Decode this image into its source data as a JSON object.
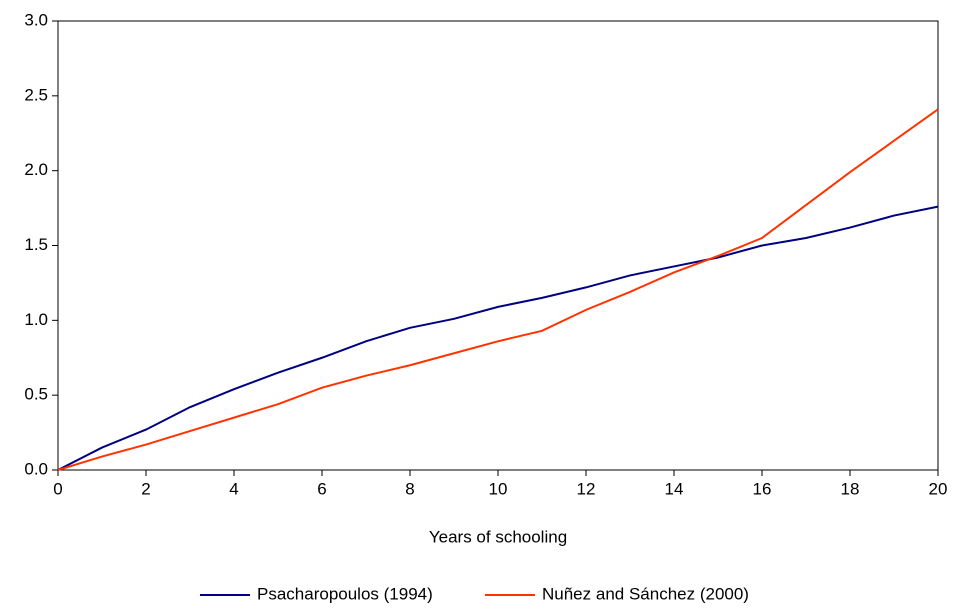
{
  "chart_data": {
    "type": "line",
    "x_label": "Years of schooling",
    "x": [
      0,
      1,
      2,
      3,
      4,
      5,
      6,
      7,
      8,
      9,
      10,
      11,
      12,
      13,
      14,
      15,
      16,
      17,
      18,
      19,
      20
    ],
    "series": [
      {
        "name": "Psacharopoulos (1994)",
        "color": "#000080",
        "values": [
          0,
          0.15,
          0.27,
          0.42,
          0.54,
          0.65,
          0.75,
          0.86,
          0.95,
          1.01,
          1.09,
          1.15,
          1.22,
          1.3,
          1.36,
          1.42,
          1.5,
          1.55,
          1.62,
          1.7,
          1.76
        ]
      },
      {
        "name": "Nuñez and Sánchez (2000)",
        "color": "#ff3300",
        "values": [
          0,
          0.09,
          0.17,
          0.26,
          0.35,
          0.44,
          0.55,
          0.63,
          0.7,
          0.78,
          0.86,
          0.93,
          1.07,
          1.19,
          1.32,
          1.43,
          1.55,
          1.77,
          1.99,
          2.2,
          2.41
        ]
      }
    ],
    "xlim": [
      0,
      20
    ],
    "xticks": [
      0,
      2,
      4,
      6,
      8,
      10,
      12,
      14,
      16,
      18,
      20
    ],
    "ylim": [
      0,
      3
    ],
    "yticks": [
      {
        "value": 0,
        "label": "0.0"
      },
      0.5,
      {
        "value": 1,
        "label": "1.0"
      },
      1.5,
      {
        "value": 2,
        "label": "2.0"
      },
      2.5,
      {
        "value": 3,
        "label": "3.0"
      }
    ],
    "grid": false,
    "legend": "bottom"
  }
}
